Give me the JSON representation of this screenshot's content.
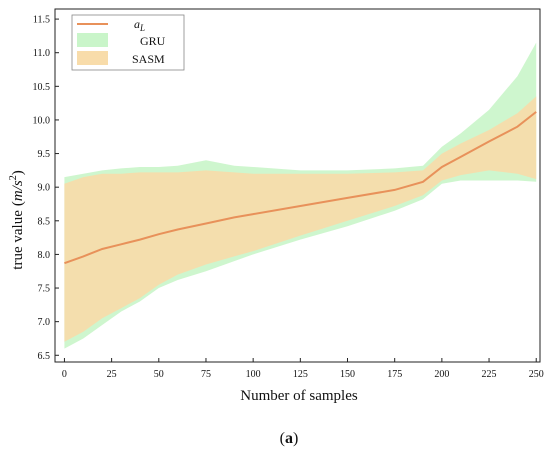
{
  "chart_data": {
    "type": "area",
    "xlabel": "Number of samples",
    "ylabel_main": "true value",
    "ylabel_unit": "m/s",
    "ylabel_unit_exp": "2",
    "xlim": [
      -5,
      252
    ],
    "ylim": [
      6.4,
      11.65
    ],
    "x_ticks": [
      0,
      25,
      50,
      75,
      100,
      125,
      150,
      175,
      200,
      225,
      250
    ],
    "y_ticks": [
      6.5,
      7.0,
      7.5,
      8.0,
      8.5,
      9.0,
      9.5,
      10.0,
      10.5,
      11.0,
      11.5
    ],
    "grid": false,
    "legend_position": "top-left",
    "series": [
      {
        "name": "a",
        "name_sub": "L",
        "kind": "line",
        "color": "#e8915a",
        "x": [
          0,
          10,
          20,
          30,
          40,
          50,
          60,
          75,
          90,
          100,
          125,
          150,
          175,
          190,
          200,
          210,
          225,
          240,
          250
        ],
        "values": [
          7.87,
          7.97,
          8.08,
          8.15,
          8.22,
          8.3,
          8.37,
          8.46,
          8.55,
          8.6,
          8.72,
          8.84,
          8.96,
          9.08,
          9.3,
          9.45,
          9.68,
          9.9,
          10.12
        ]
      },
      {
        "name": "GRU",
        "kind": "band",
        "color": "#c9f5c9",
        "x": [
          0,
          10,
          20,
          30,
          40,
          50,
          60,
          75,
          90,
          100,
          125,
          150,
          175,
          190,
          200,
          210,
          225,
          240,
          250
        ],
        "upper": [
          9.15,
          9.2,
          9.25,
          9.28,
          9.3,
          9.3,
          9.32,
          9.4,
          9.32,
          9.3,
          9.25,
          9.25,
          9.28,
          9.32,
          9.6,
          9.8,
          10.15,
          10.65,
          11.15
        ],
        "lower": [
          6.6,
          6.75,
          6.95,
          7.15,
          7.3,
          7.5,
          7.62,
          7.75,
          7.9,
          8.0,
          8.22,
          8.42,
          8.65,
          8.82,
          9.05,
          9.1,
          9.1,
          9.1,
          9.08
        ]
      },
      {
        "name": "SASM",
        "kind": "band",
        "color": "#f8dcaa",
        "x": [
          0,
          10,
          20,
          30,
          40,
          50,
          60,
          75,
          90,
          100,
          125,
          150,
          175,
          190,
          200,
          210,
          225,
          240,
          250
        ],
        "upper": [
          9.05,
          9.15,
          9.2,
          9.2,
          9.22,
          9.22,
          9.22,
          9.25,
          9.22,
          9.2,
          9.2,
          9.2,
          9.22,
          9.25,
          9.5,
          9.65,
          9.85,
          10.1,
          10.35
        ],
        "lower": [
          6.7,
          6.85,
          7.05,
          7.2,
          7.35,
          7.55,
          7.7,
          7.85,
          7.97,
          8.05,
          8.28,
          8.5,
          8.72,
          8.88,
          9.1,
          9.18,
          9.25,
          9.2,
          9.12
        ]
      }
    ]
  },
  "caption": {
    "open": "(",
    "letter": "a",
    "close": ")"
  }
}
